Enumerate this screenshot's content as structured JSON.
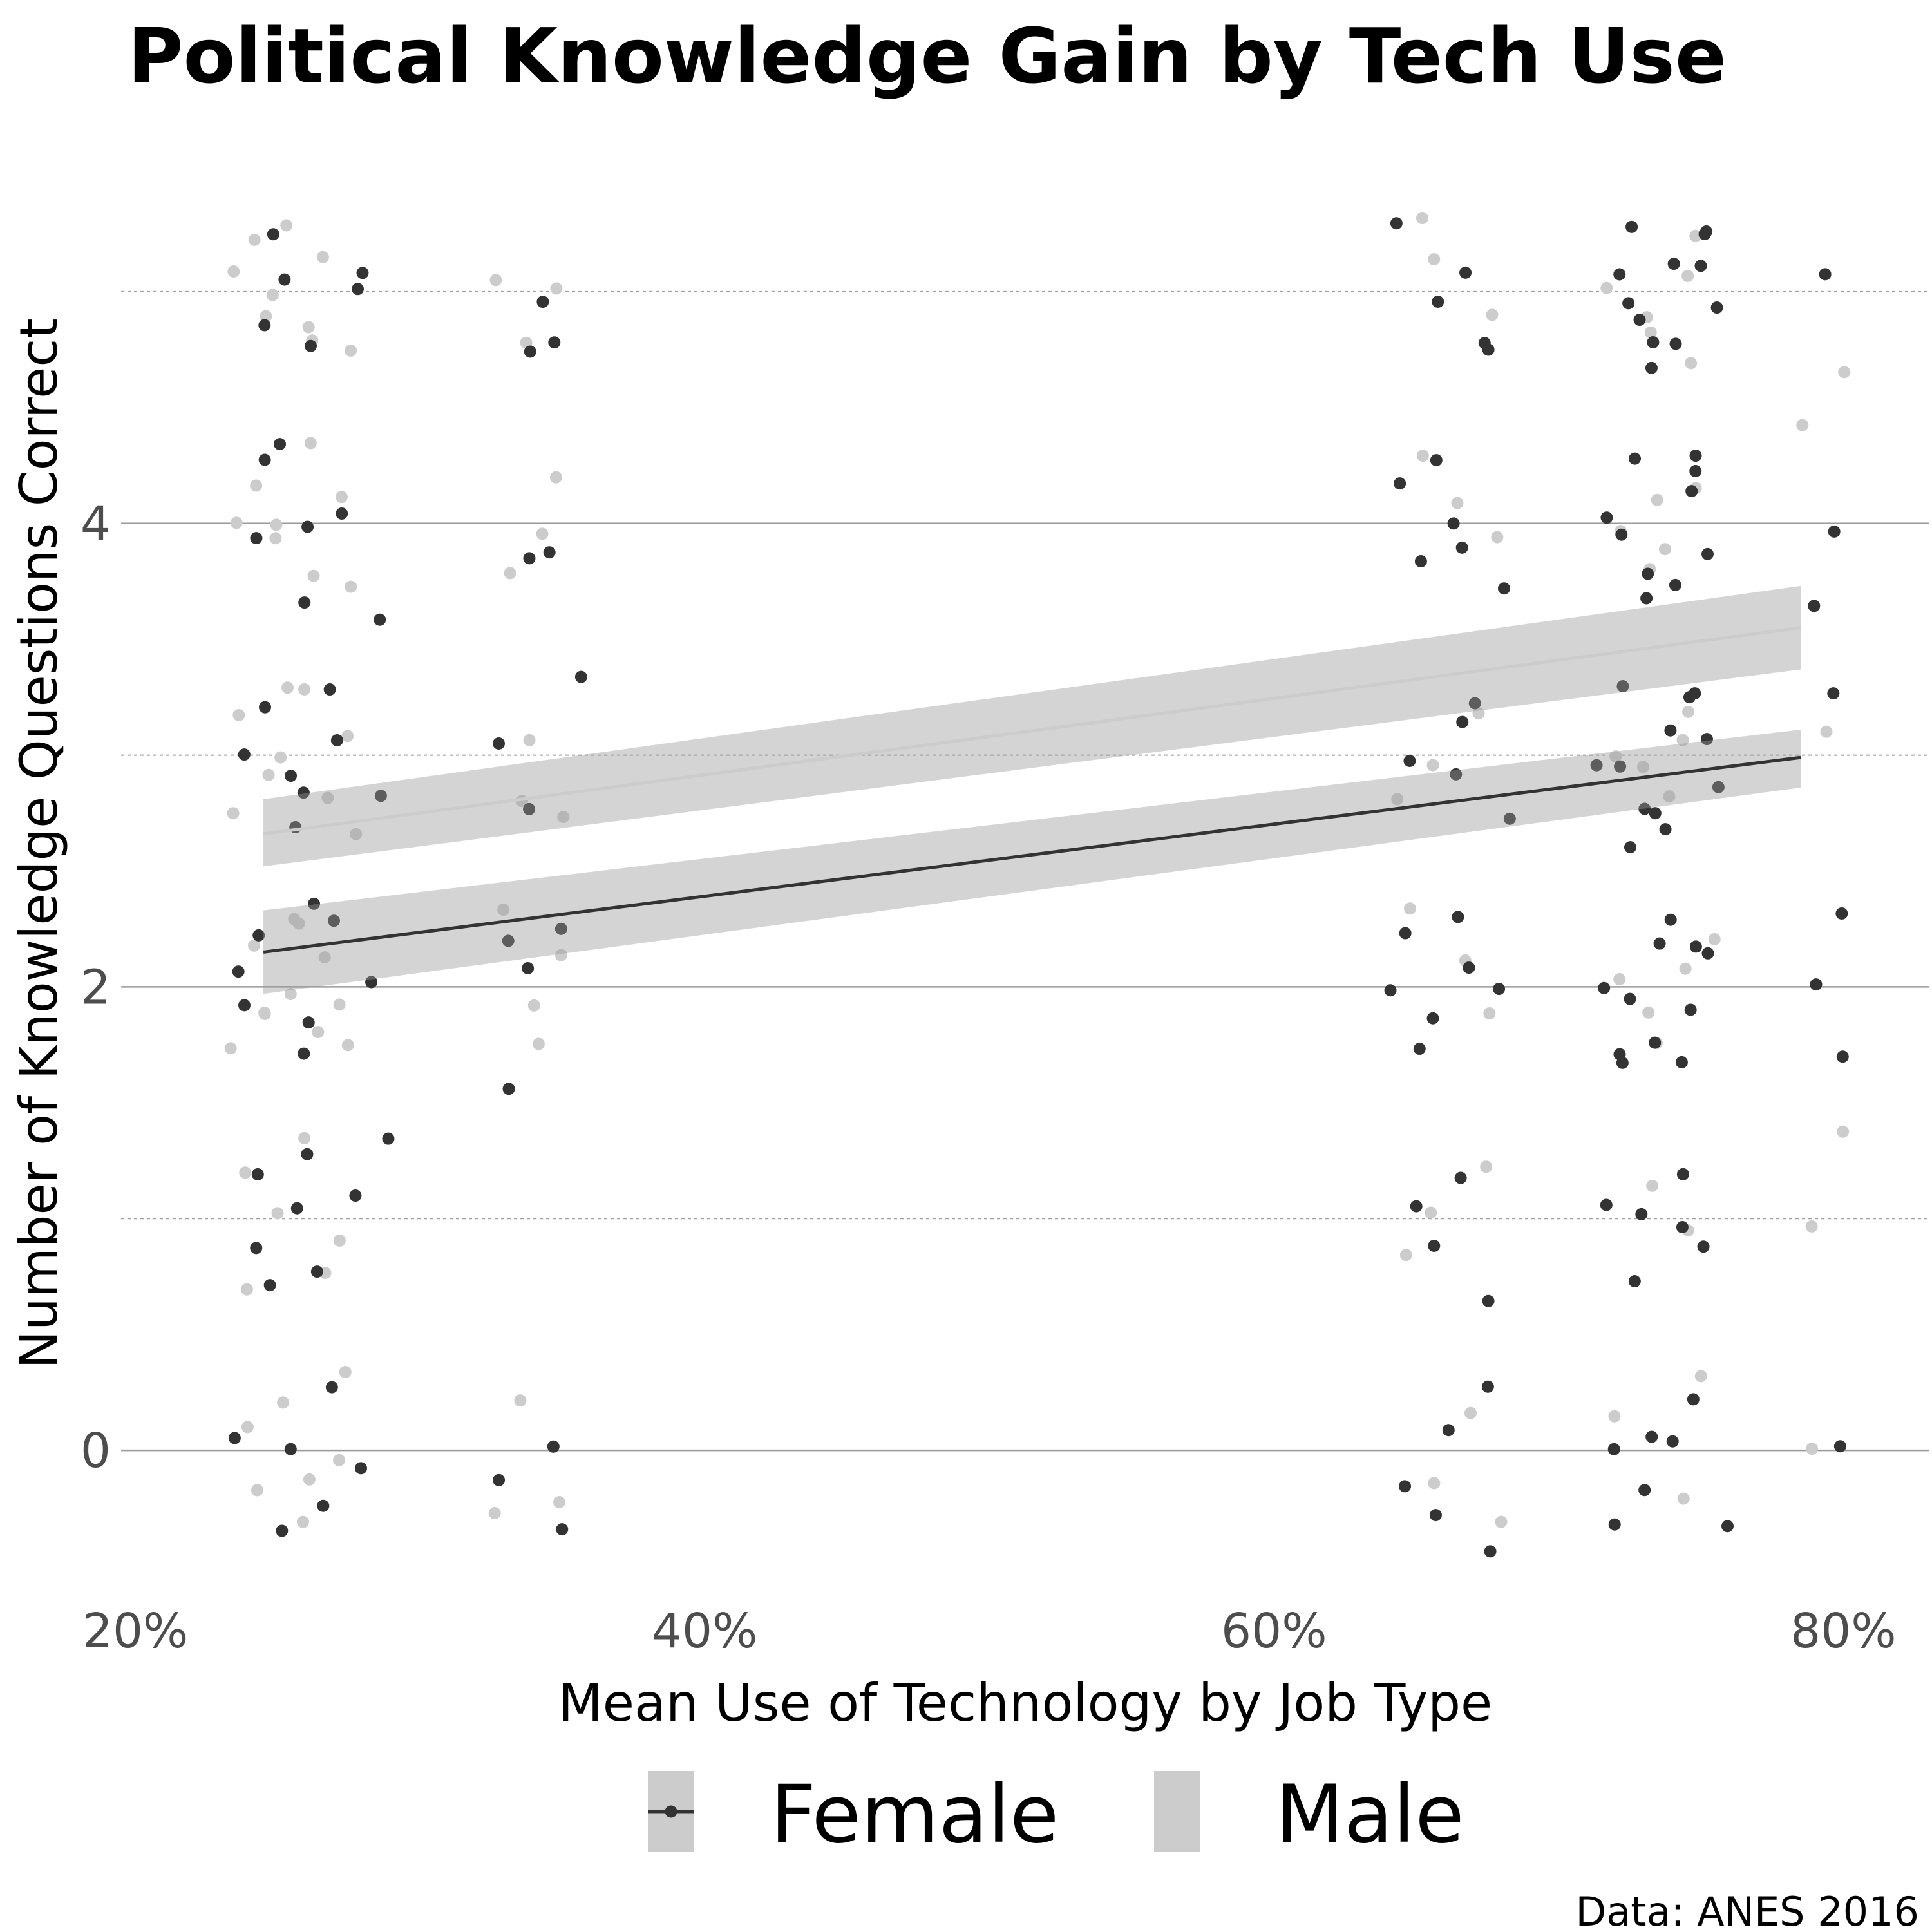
{
  "chart_data": {
    "type": "scatter",
    "title": "Political Knowledge Gain by Tech Use",
    "xlabel": "Mean Use of Technology by Job Type",
    "ylabel": "Number of Knowledge Questions Correct",
    "caption": "Data: ANES 2016",
    "xlim": [
      0.195,
      0.83
    ],
    "ylim": [
      -0.55,
      5.55
    ],
    "x_ticks": [
      0.2,
      0.4,
      0.6,
      0.8
    ],
    "x_tick_labels": [
      "20%",
      "40%",
      "60%",
      "80%"
    ],
    "y_ticks": [
      0,
      2,
      4
    ],
    "y_tick_labels": [
      "0",
      "2",
      "4"
    ],
    "y_minor_gridlines": [
      1,
      3,
      5
    ],
    "grid": true,
    "legend_position": "bottom",
    "job_clusters_x": [
      0.26,
      0.34,
      0.67,
      0.74
    ],
    "jitter": {
      "x": 0.025,
      "y": 0.4
    },
    "series": [
      {
        "name": "Female",
        "color": "#333333",
        "fit_line": {
          "x": [
            0.245,
            0.785
          ],
          "y": [
            2.15,
            2.99
          ]
        },
        "ci_band": {
          "lower": [
            1.97,
            2.86
          ],
          "upper": [
            2.33,
            3.11
          ]
        },
        "points": [
          [
            0.255,
            0.0
          ],
          [
            0.262,
            -0.2
          ],
          [
            0.27,
            0.3
          ],
          [
            0.236,
            0.1
          ],
          [
            0.283,
            -0.1
          ],
          [
            0.248,
            -0.3
          ],
          [
            0.26,
            1.3
          ],
          [
            0.244,
            0.9
          ],
          [
            0.275,
            1.1
          ],
          [
            0.25,
            0.7
          ],
          [
            0.285,
            1.3
          ],
          [
            0.258,
            1.0
          ],
          [
            0.24,
            1.2
          ],
          [
            0.268,
            0.8
          ],
          [
            0.247,
            2.2
          ],
          [
            0.26,
            1.8
          ],
          [
            0.272,
            2.3
          ],
          [
            0.238,
            2.1
          ],
          [
            0.255,
            1.7
          ],
          [
            0.28,
            2.0
          ],
          [
            0.265,
            2.35
          ],
          [
            0.242,
            1.9
          ],
          [
            0.25,
            2.9
          ],
          [
            0.27,
            3.3
          ],
          [
            0.245,
            3.2
          ],
          [
            0.26,
            2.7
          ],
          [
            0.283,
            2.8
          ],
          [
            0.238,
            3.0
          ],
          [
            0.258,
            2.85
          ],
          [
            0.275,
            3.1
          ],
          [
            0.252,
            4.3
          ],
          [
            0.27,
            4.0
          ],
          [
            0.243,
            3.9
          ],
          [
            0.26,
            3.7
          ],
          [
            0.282,
            3.6
          ],
          [
            0.248,
            4.3
          ],
          [
            0.265,
            4.0
          ],
          [
            0.25,
            5.2
          ],
          [
            0.275,
            5.0
          ],
          [
            0.245,
            4.9
          ],
          [
            0.262,
            4.8
          ],
          [
            0.28,
            5.1
          ],
          [
            0.255,
            5.05
          ],
          [
            0.327,
            -0.1
          ],
          [
            0.346,
            0.0
          ],
          [
            0.35,
            -0.3
          ],
          [
            0.336,
            2.2
          ],
          [
            0.35,
            2.3
          ],
          [
            0.33,
            1.6
          ],
          [
            0.342,
            2.1
          ],
          [
            0.339,
            2.75
          ],
          [
            0.352,
            3.3
          ],
          [
            0.331,
            3.1
          ],
          [
            0.335,
            3.8
          ],
          [
            0.342,
            3.85
          ],
          [
            0.338,
            4.7
          ],
          [
            0.352,
            4.8
          ],
          [
            0.342,
            5.0
          ],
          [
            0.66,
            0.1
          ],
          [
            0.648,
            -0.2
          ],
          [
            0.675,
            -0.4
          ],
          [
            0.655,
            -0.3
          ],
          [
            0.68,
            0.3
          ],
          [
            0.66,
            0.9
          ],
          [
            0.67,
            1.2
          ],
          [
            0.65,
            1.05
          ],
          [
            0.675,
            0.6
          ],
          [
            0.645,
            2.0
          ],
          [
            0.66,
            1.9
          ],
          [
            0.672,
            2.1
          ],
          [
            0.655,
            1.75
          ],
          [
            0.683,
            2.0
          ],
          [
            0.648,
            2.2
          ],
          [
            0.665,
            2.3
          ],
          [
            0.66,
            2.9
          ],
          [
            0.672,
            3.2
          ],
          [
            0.648,
            3.0
          ],
          [
            0.68,
            2.75
          ],
          [
            0.665,
            3.15
          ],
          [
            0.652,
            3.8
          ],
          [
            0.667,
            4.0
          ],
          [
            0.645,
            4.2
          ],
          [
            0.678,
            3.7
          ],
          [
            0.66,
            4.25
          ],
          [
            0.67,
            3.9
          ],
          [
            0.655,
            5.0
          ],
          [
            0.675,
            4.8
          ],
          [
            0.648,
            5.3
          ],
          [
            0.665,
            5.1
          ],
          [
            0.68,
            4.75
          ],
          [
            0.72,
            0.0
          ],
          [
            0.735,
            -0.2
          ],
          [
            0.748,
            0.2
          ],
          [
            0.73,
            0.1
          ],
          [
            0.715,
            -0.35
          ],
          [
            0.755,
            -0.3
          ],
          [
            0.742,
            0.05
          ],
          [
            0.725,
            1.0
          ],
          [
            0.74,
            1.2
          ],
          [
            0.752,
            0.85
          ],
          [
            0.73,
            0.7
          ],
          [
            0.716,
            1.05
          ],
          [
            0.745,
            0.95
          ],
          [
            0.72,
            2.0
          ],
          [
            0.735,
            1.8
          ],
          [
            0.748,
            2.2
          ],
          [
            0.73,
            1.9
          ],
          [
            0.742,
            1.7
          ],
          [
            0.755,
            2.1
          ],
          [
            0.725,
            1.65
          ],
          [
            0.738,
            2.3
          ],
          [
            0.718,
            1.75
          ],
          [
            0.75,
            1.95
          ],
          [
            0.733,
            2.15
          ],
          [
            0.72,
            3.0
          ],
          [
            0.735,
            2.8
          ],
          [
            0.748,
            3.2
          ],
          [
            0.73,
            2.65
          ],
          [
            0.742,
            3.1
          ],
          [
            0.755,
            2.9
          ],
          [
            0.725,
            3.3
          ],
          [
            0.738,
            2.75
          ],
          [
            0.718,
            2.95
          ],
          [
            0.75,
            3.05
          ],
          [
            0.733,
            2.7
          ],
          [
            0.744,
            3.25
          ],
          [
            0.72,
            4.0
          ],
          [
            0.735,
            3.8
          ],
          [
            0.748,
            4.2
          ],
          [
            0.73,
            3.65
          ],
          [
            0.742,
            4.1
          ],
          [
            0.755,
            3.9
          ],
          [
            0.725,
            4.3
          ],
          [
            0.738,
            3.75
          ],
          [
            0.718,
            4.05
          ],
          [
            0.75,
            4.25
          ],
          [
            0.72,
            5.0
          ],
          [
            0.735,
            4.8
          ],
          [
            0.748,
            5.2
          ],
          [
            0.73,
            4.7
          ],
          [
            0.742,
            5.1
          ],
          [
            0.755,
            4.9
          ],
          [
            0.725,
            5.3
          ],
          [
            0.738,
            4.75
          ],
          [
            0.718,
            5.05
          ],
          [
            0.75,
            5.25
          ],
          [
            0.733,
            4.85
          ],
          [
            0.745,
            5.15
          ],
          [
            0.79,
            3.65
          ],
          [
            0.798,
            4.0
          ],
          [
            0.795,
            5.1
          ],
          [
            0.802,
            2.35
          ],
          [
            0.8,
            3.3
          ],
          [
            0.802,
            1.7
          ],
          [
            0.792,
            2.05
          ],
          [
            0.797,
            0.05
          ]
        ]
      },
      {
        "name": "Male",
        "color": "#cccccc",
        "fit_line": {
          "x": [
            0.245,
            0.785
          ],
          "y": [
            2.66,
            3.55
          ]
        },
        "ci_band": {
          "lower": [
            2.52,
            3.37
          ],
          "upper": [
            2.81,
            3.73
          ]
        },
        "points": [
          [
            0.252,
            0.2
          ],
          [
            0.265,
            -0.1
          ],
          [
            0.24,
            0.1
          ],
          [
            0.278,
            0.3
          ],
          [
            0.258,
            -0.3
          ],
          [
            0.245,
            -0.2
          ],
          [
            0.27,
            0.0
          ],
          [
            0.25,
            1.05
          ],
          [
            0.265,
            0.8
          ],
          [
            0.238,
            1.2
          ],
          [
            0.275,
            0.95
          ],
          [
            0.255,
            1.3
          ],
          [
            0.243,
            0.7
          ],
          [
            0.25,
            2.0
          ],
          [
            0.265,
            1.8
          ],
          [
            0.24,
            2.2
          ],
          [
            0.278,
            1.7
          ],
          [
            0.258,
            2.3
          ],
          [
            0.245,
            1.9
          ],
          [
            0.27,
            2.1
          ],
          [
            0.235,
            1.75
          ],
          [
            0.26,
            2.25
          ],
          [
            0.248,
            1.85
          ],
          [
            0.272,
            1.95
          ],
          [
            0.25,
            3.0
          ],
          [
            0.265,
            2.8
          ],
          [
            0.24,
            3.2
          ],
          [
            0.278,
            2.7
          ],
          [
            0.258,
            3.3
          ],
          [
            0.245,
            2.9
          ],
          [
            0.27,
            3.1
          ],
          [
            0.235,
            2.75
          ],
          [
            0.26,
            3.25
          ],
          [
            0.25,
            4.0
          ],
          [
            0.265,
            3.8
          ],
          [
            0.24,
            4.2
          ],
          [
            0.278,
            3.7
          ],
          [
            0.258,
            4.3
          ],
          [
            0.245,
            3.9
          ],
          [
            0.27,
            4.1
          ],
          [
            0.235,
            4.05
          ],
          [
            0.25,
            5.0
          ],
          [
            0.265,
            4.8
          ],
          [
            0.24,
            5.2
          ],
          [
            0.278,
            4.7
          ],
          [
            0.258,
            5.3
          ],
          [
            0.245,
            4.9
          ],
          [
            0.27,
            5.1
          ],
          [
            0.235,
            5.05
          ],
          [
            0.26,
            4.85
          ],
          [
            0.33,
            -0.3
          ],
          [
            0.345,
            -0.2
          ],
          [
            0.34,
            0.25
          ],
          [
            0.338,
            1.9
          ],
          [
            0.348,
            2.1
          ],
          [
            0.332,
            2.3
          ],
          [
            0.345,
            1.8
          ],
          [
            0.34,
            2.85
          ],
          [
            0.35,
            2.7
          ],
          [
            0.335,
            3.1
          ],
          [
            0.343,
            4.0
          ],
          [
            0.35,
            4.2
          ],
          [
            0.336,
            3.8
          ],
          [
            0.34,
            4.8
          ],
          [
            0.345,
            5.05
          ],
          [
            0.33,
            5.1
          ],
          [
            0.655,
            -0.1
          ],
          [
            0.67,
            0.2
          ],
          [
            0.68,
            -0.3
          ],
          [
            0.66,
            1.0
          ],
          [
            0.675,
            1.2
          ],
          [
            0.648,
            0.8
          ],
          [
            0.665,
            2.1
          ],
          [
            0.678,
            1.9
          ],
          [
            0.652,
            2.3
          ],
          [
            0.66,
            3.0
          ],
          [
            0.675,
            3.2
          ],
          [
            0.648,
            2.8
          ],
          [
            0.665,
            4.1
          ],
          [
            0.678,
            3.9
          ],
          [
            0.652,
            4.3
          ],
          [
            0.66,
            5.1
          ],
          [
            0.675,
            4.9
          ],
          [
            0.648,
            5.3
          ],
          [
            0.72,
            0.1
          ],
          [
            0.74,
            -0.2
          ],
          [
            0.75,
            0.3
          ],
          [
            0.73,
            1.1
          ],
          [
            0.745,
            0.9
          ],
          [
            0.72,
            2.0
          ],
          [
            0.735,
            1.8
          ],
          [
            0.75,
            2.2
          ],
          [
            0.73,
            1.9
          ],
          [
            0.742,
            2.05
          ],
          [
            0.72,
            3.0
          ],
          [
            0.735,
            2.8
          ],
          [
            0.75,
            3.2
          ],
          [
            0.73,
            2.9
          ],
          [
            0.742,
            3.1
          ],
          [
            0.72,
            4.0
          ],
          [
            0.735,
            3.8
          ],
          [
            0.75,
            4.2
          ],
          [
            0.73,
            4.1
          ],
          [
            0.742,
            3.9
          ],
          [
            0.72,
            5.0
          ],
          [
            0.735,
            4.8
          ],
          [
            0.75,
            5.2
          ],
          [
            0.73,
            4.9
          ],
          [
            0.742,
            5.1
          ],
          [
            0.748,
            4.7
          ],
          [
            0.785,
            0.0
          ],
          [
            0.793,
            1.0
          ],
          [
            0.8,
            1.4
          ],
          [
            0.795,
            3.1
          ],
          [
            0.802,
            4.7
          ],
          [
            0.79,
            4.4
          ]
        ]
      }
    ]
  }
}
